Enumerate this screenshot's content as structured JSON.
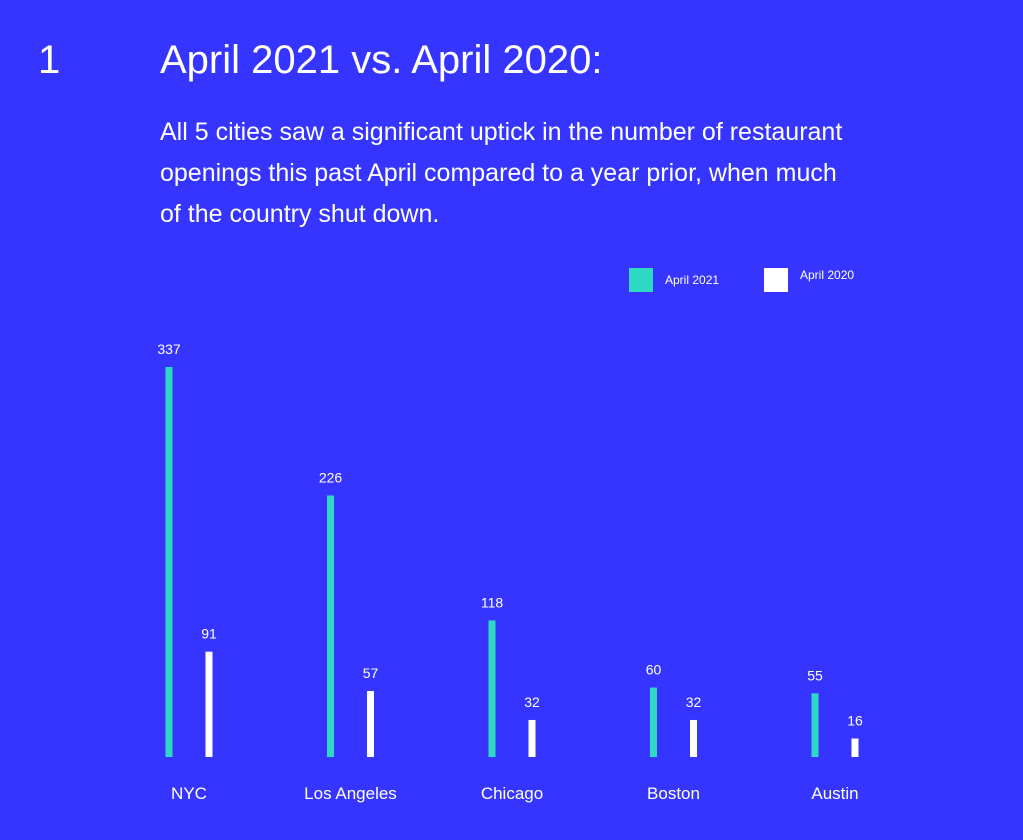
{
  "header": {
    "number": "1",
    "title": "April 2021 vs. April 2020:",
    "subtitle": "All 5 cities saw a significant uptick in the number of restaurant openings this past April compared to a year prior, when much of the country shut down."
  },
  "colors": {
    "background": "#3535ff",
    "series_2021": "#2ed9c3",
    "series_2020": "#ffffff"
  },
  "chart_data": {
    "type": "bar",
    "categories": [
      "NYC",
      "Los Angeles",
      "Chicago",
      "Boston",
      "Austin"
    ],
    "series": [
      {
        "name": "April 2021",
        "values": [
          337,
          226,
          118,
          60,
          55
        ]
      },
      {
        "name": "April 2020",
        "values": [
          91,
          57,
          32,
          32,
          16
        ]
      }
    ],
    "ylim": [
      0,
      337
    ],
    "grid": false,
    "legend": "top-right",
    "data_labels": true
  }
}
